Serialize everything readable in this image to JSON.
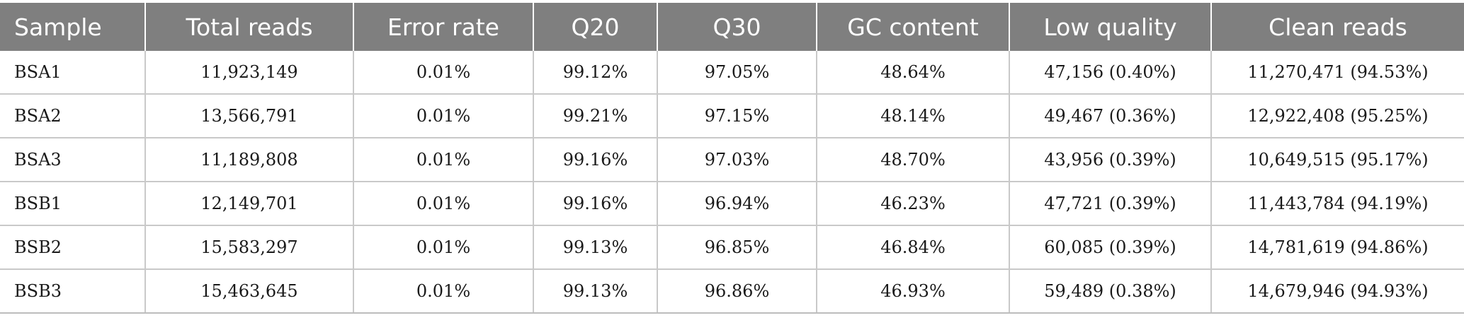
{
  "table": {
    "headers": [
      "Sample",
      "Total reads",
      "Error rate",
      "Q20",
      "Q30",
      "GC content",
      "Low quality",
      "Clean reads"
    ],
    "rows": [
      [
        "BSA1",
        "11,923,149",
        "0.01%",
        "99.12%",
        "97.05%",
        "48.64%",
        "47,156 (0.40%)",
        "11,270,471 (94.53%)"
      ],
      [
        "BSA2",
        "13,566,791",
        "0.01%",
        "99.21%",
        "97.15%",
        "48.14%",
        "49,467 (0.36%)",
        "12,922,408 (95.25%)"
      ],
      [
        "BSA3",
        "11,189,808",
        "0.01%",
        "99.16%",
        "97.03%",
        "48.70%",
        "43,956 (0.39%)",
        "10,649,515 (95.17%)"
      ],
      [
        "BSB1",
        "12,149,701",
        "0.01%",
        "99.16%",
        "96.94%",
        "46.23%",
        "47,721 (0.39%)",
        "11,443,784 (94.19%)"
      ],
      [
        "BSB2",
        "15,583,297",
        "0.01%",
        "99.13%",
        "96.85%",
        "46.84%",
        "60,085 (0.39%)",
        "14,781,619 (94.86%)"
      ],
      [
        "BSB3",
        "15,463,645",
        "0.01%",
        "99.13%",
        "96.86%",
        "46.93%",
        "59,489 (0.38%)",
        "14,679,946 (94.93%)"
      ]
    ]
  },
  "colors": {
    "header_background": "#7f7f7f",
    "header_text": "#ffffff",
    "cell_border": "#c9c9c9"
  }
}
